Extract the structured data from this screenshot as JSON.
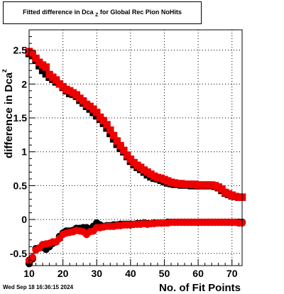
{
  "title": {
    "prefix": "Fitted difference in Dca",
    "sub": "Z",
    "suffix": " for Global Rec Pion NoHits"
  },
  "timestamp": "Wed Sep 18 16:36:15 2024",
  "chart_data": {
    "type": "scatter",
    "xlabel": "No. of Fit Points",
    "ylabel_prefix": "difference in Dca",
    "ylabel_sub": "z",
    "xlim": [
      10,
      73
    ],
    "ylim": [
      -0.68,
      2.8
    ],
    "xticks": [
      10,
      20,
      30,
      40,
      50,
      60,
      70
    ],
    "yticks": [
      -0.5,
      0,
      0.5,
      1,
      1.5,
      2,
      2.5
    ],
    "ytick_labels": [
      "-0.5",
      "0",
      "0.5",
      "1",
      "1.5",
      "2",
      "2.5"
    ],
    "grid": true,
    "series": [
      {
        "color": "#000000",
        "marker": "square",
        "x": [
          10,
          11,
          12,
          13,
          14,
          15,
          16,
          17,
          18,
          19,
          20,
          21,
          22,
          23,
          24,
          25,
          26,
          27,
          28,
          29,
          30,
          31,
          32,
          33,
          34,
          35,
          36,
          37,
          38,
          39,
          40,
          41,
          42,
          43,
          44,
          45,
          46,
          47,
          48,
          49,
          50,
          51,
          52,
          53,
          54,
          55,
          56,
          57,
          58,
          59,
          60,
          61,
          62,
          63,
          64,
          65,
          66,
          67,
          68,
          69,
          70,
          71,
          72,
          73
        ],
        "y": [
          2.45,
          2.42,
          2.35,
          2.27,
          2.2,
          2.15,
          2.1,
          2.07,
          2.03,
          2.0,
          1.95,
          1.9,
          1.86,
          1.85,
          1.82,
          1.76,
          1.72,
          1.67,
          1.63,
          1.58,
          1.53,
          1.48,
          1.42,
          1.35,
          1.27,
          1.19,
          1.11,
          1.05,
          1.0,
          0.93,
          0.86,
          0.81,
          0.77,
          0.74,
          0.7,
          0.66,
          0.63,
          0.61,
          0.6,
          0.58,
          0.56,
          0.54,
          0.53,
          0.52,
          0.52,
          0.51,
          0.51,
          0.51,
          0.5,
          0.5,
          0.5,
          0.5,
          0.5,
          0.5,
          0.5,
          0.49,
          0.47,
          0.43,
          0.39,
          0.37,
          0.35,
          0.34,
          0.33,
          0.33
        ]
      },
      {
        "color": "#000000",
        "marker": "circle",
        "x": [
          10,
          11,
          12,
          13,
          14,
          15,
          16,
          17,
          18,
          19,
          20,
          21,
          22,
          23,
          24,
          25,
          26,
          27,
          28,
          29,
          30,
          31,
          32,
          33,
          34,
          35,
          36,
          37,
          38,
          39,
          40,
          41,
          42,
          43,
          44,
          45,
          46,
          47,
          48,
          49,
          50,
          51,
          52,
          53,
          54,
          55,
          56,
          57,
          58,
          59,
          60,
          61,
          62,
          63,
          64,
          65,
          66,
          67,
          68,
          69,
          70,
          71,
          72,
          73
        ],
        "y": [
          -0.65,
          -0.58,
          -0.43,
          -0.42,
          -0.41,
          -0.44,
          -0.4,
          -0.35,
          -0.33,
          -0.25,
          -0.2,
          -0.17,
          -0.17,
          -0.16,
          -0.13,
          -0.13,
          -0.12,
          -0.12,
          -0.14,
          -0.1,
          -0.05,
          -0.08,
          -0.1,
          -0.09,
          -0.09,
          -0.08,
          -0.08,
          -0.07,
          -0.07,
          -0.07,
          -0.07,
          -0.07,
          -0.06,
          -0.06,
          -0.05,
          -0.06,
          -0.06,
          -0.05,
          -0.05,
          -0.05,
          -0.05,
          -0.04,
          -0.04,
          -0.04,
          -0.04,
          -0.04,
          -0.04,
          -0.04,
          -0.04,
          -0.04,
          -0.04,
          -0.04,
          -0.04,
          -0.04,
          -0.04,
          -0.04,
          -0.04,
          -0.04,
          -0.04,
          -0.04,
          -0.04,
          -0.04,
          -0.04,
          -0.04
        ]
      },
      {
        "color": "#ee0000",
        "marker": "square",
        "x": [
          10,
          11,
          12,
          13,
          14,
          15,
          16,
          17,
          18,
          19,
          20,
          21,
          22,
          23,
          24,
          25,
          26,
          27,
          28,
          29,
          30,
          31,
          32,
          33,
          34,
          35,
          36,
          37,
          38,
          39,
          40,
          41,
          42,
          43,
          44,
          45,
          46,
          47,
          48,
          49,
          50,
          51,
          52,
          53,
          54,
          55,
          56,
          57,
          58,
          59,
          60,
          61,
          62,
          63,
          64,
          65,
          66,
          67,
          68,
          69,
          70,
          71,
          72,
          73
        ],
        "y": [
          2.48,
          2.44,
          2.38,
          2.32,
          2.28,
          2.25,
          2.14,
          2.1,
          2.06,
          2.0,
          1.96,
          1.92,
          1.9,
          1.87,
          1.84,
          1.79,
          1.75,
          1.7,
          1.67,
          1.63,
          1.58,
          1.51,
          1.46,
          1.4,
          1.32,
          1.24,
          1.16,
          1.09,
          1.02,
          0.95,
          0.89,
          0.84,
          0.8,
          0.77,
          0.73,
          0.7,
          0.67,
          0.64,
          0.62,
          0.61,
          0.59,
          0.57,
          0.55,
          0.54,
          0.53,
          0.53,
          0.52,
          0.52,
          0.52,
          0.52,
          0.51,
          0.51,
          0.51,
          0.51,
          0.51,
          0.5,
          0.48,
          0.45,
          0.4,
          0.38,
          0.36,
          0.34,
          0.33,
          0.33
        ]
      },
      {
        "color": "#ee0000",
        "marker": "circle",
        "x": [
          10,
          11,
          12,
          13,
          14,
          15,
          16,
          17,
          18,
          19,
          20,
          21,
          22,
          23,
          24,
          25,
          26,
          27,
          28,
          29,
          30,
          31,
          32,
          33,
          34,
          35,
          36,
          37,
          38,
          39,
          40,
          41,
          42,
          43,
          44,
          45,
          46,
          47,
          48,
          49,
          50,
          51,
          52,
          53,
          54,
          55,
          56,
          57,
          58,
          59,
          60,
          61,
          62,
          63,
          64,
          65,
          66,
          67,
          68,
          69,
          70,
          71,
          72,
          73
        ],
        "y": [
          -0.6,
          -0.56,
          -0.45,
          -0.42,
          -0.37,
          -0.36,
          -0.35,
          -0.33,
          -0.33,
          -0.28,
          -0.22,
          -0.2,
          -0.19,
          -0.18,
          -0.16,
          -0.17,
          -0.18,
          -0.22,
          -0.18,
          -0.17,
          -0.12,
          -0.12,
          -0.11,
          -0.1,
          -0.1,
          -0.1,
          -0.09,
          -0.09,
          -0.08,
          -0.08,
          -0.08,
          -0.07,
          -0.07,
          -0.07,
          -0.06,
          -0.07,
          -0.06,
          -0.06,
          -0.05,
          -0.05,
          -0.05,
          -0.05,
          -0.04,
          -0.04,
          -0.04,
          -0.04,
          -0.04,
          -0.04,
          -0.04,
          -0.04,
          -0.04,
          -0.04,
          -0.04,
          -0.04,
          -0.04,
          -0.04,
          -0.04,
          -0.04,
          -0.04,
          -0.04,
          -0.04,
          -0.04,
          -0.05,
          -0.05
        ]
      }
    ]
  }
}
